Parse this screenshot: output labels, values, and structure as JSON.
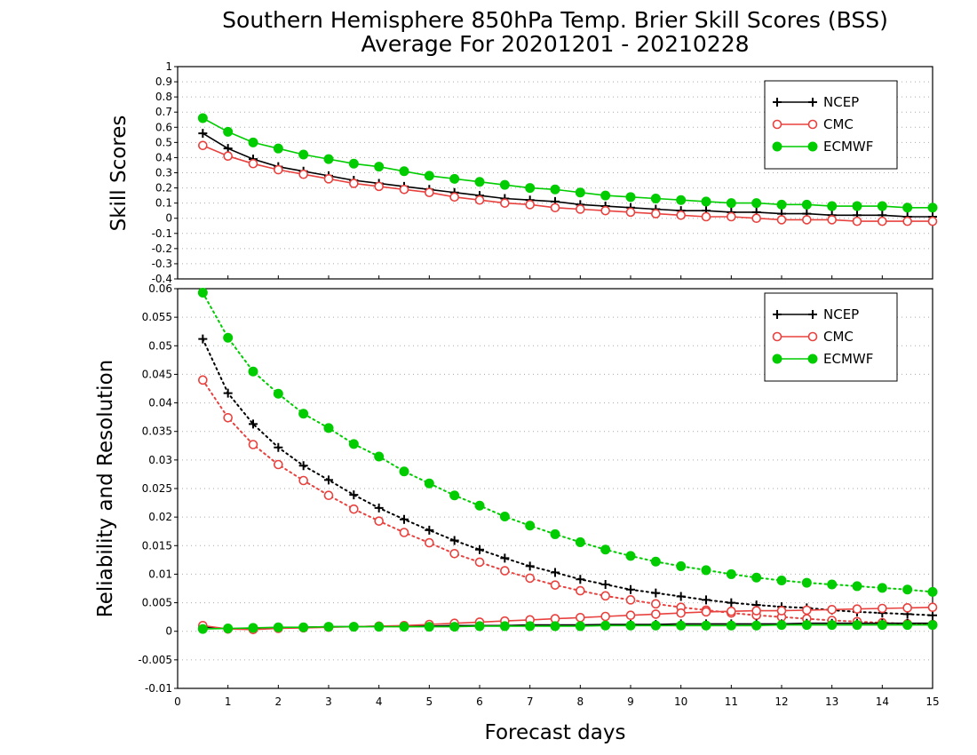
{
  "title_line1": "Southern Hemisphere 850hPa Temp. Brier Skill Scores (BSS)",
  "title_line2": "Average For 20201201 - 20210228",
  "xlabel": "Forecast days",
  "colors": {
    "NCEP": "#000000",
    "CMC": "#e8423f",
    "ECMWF": "#00cc00",
    "grid": "#aaaaaa"
  },
  "chart_data": [
    {
      "type": "line",
      "ylabel": "Skill Scores",
      "xlim": [
        0,
        15
      ],
      "ylim": [
        -0.4,
        1
      ],
      "x_ticks": [
        0,
        1,
        2,
        3,
        4,
        5,
        6,
        7,
        8,
        9,
        10,
        11,
        12,
        13,
        14,
        15
      ],
      "y_ticks": [
        -0.4,
        -0.3,
        -0.2,
        -0.1,
        0,
        0.1,
        0.2,
        0.3,
        0.4,
        0.5,
        0.6,
        0.7,
        0.8,
        0.9,
        1
      ],
      "y_tick_labels": [
        "-0.4",
        "-0.3",
        "-0.2",
        "-0.1",
        "0",
        "0.1",
        "0.2",
        "0.3",
        "0.4",
        "0.5",
        "0.6",
        "0.7",
        "0.8",
        "0.9",
        "1"
      ],
      "grid": true,
      "legend_position": "top-right",
      "x": [
        0.5,
        1,
        1.5,
        2,
        2.5,
        3,
        3.5,
        4,
        4.5,
        5,
        5.5,
        6,
        6.5,
        7,
        7.5,
        8,
        8.5,
        9,
        9.5,
        10,
        10.5,
        11,
        11.5,
        12,
        12.5,
        13,
        13.5,
        14,
        14.5,
        15
      ],
      "series": [
        {
          "name": "NCEP",
          "marker": "plus",
          "line": "solid",
          "values": [
            0.56,
            0.46,
            0.39,
            0.34,
            0.31,
            0.28,
            0.25,
            0.23,
            0.21,
            0.19,
            0.17,
            0.15,
            0.13,
            0.12,
            0.11,
            0.09,
            0.08,
            0.07,
            0.06,
            0.05,
            0.05,
            0.04,
            0.04,
            0.03,
            0.03,
            0.02,
            0.02,
            0.02,
            0.01,
            0.01
          ]
        },
        {
          "name": "CMC",
          "marker": "open-circle",
          "line": "solid",
          "values": [
            0.48,
            0.41,
            0.36,
            0.32,
            0.29,
            0.26,
            0.23,
            0.21,
            0.19,
            0.17,
            0.14,
            0.12,
            0.1,
            0.09,
            0.07,
            0.06,
            0.05,
            0.04,
            0.03,
            0.02,
            0.01,
            0.01,
            0.0,
            -0.01,
            -0.01,
            -0.01,
            -0.02,
            -0.02,
            -0.02,
            -0.02
          ]
        },
        {
          "name": "ECMWF",
          "marker": "filled-circle",
          "line": "solid",
          "values": [
            0.66,
            0.57,
            0.5,
            0.46,
            0.42,
            0.39,
            0.36,
            0.34,
            0.31,
            0.28,
            0.26,
            0.24,
            0.22,
            0.2,
            0.19,
            0.17,
            0.15,
            0.14,
            0.13,
            0.12,
            0.11,
            0.1,
            0.1,
            0.09,
            0.09,
            0.08,
            0.08,
            0.08,
            0.07,
            0.07
          ]
        }
      ]
    },
    {
      "type": "line",
      "ylabel": "Reliability and Resolution",
      "xlim": [
        0,
        15
      ],
      "ylim": [
        -0.01,
        0.06
      ],
      "x_ticks": [
        0,
        1,
        2,
        3,
        4,
        5,
        6,
        7,
        8,
        9,
        10,
        11,
        12,
        13,
        14,
        15
      ],
      "y_ticks": [
        -0.01,
        -0.005,
        0,
        0.005,
        0.01,
        0.015,
        0.02,
        0.025,
        0.03,
        0.035,
        0.04,
        0.045,
        0.05,
        0.055,
        0.06
      ],
      "y_tick_labels": [
        "-0.01",
        "-0.005",
        "0",
        "0.005",
        "0.01",
        "0.015",
        "0.02",
        "0.025",
        "0.03",
        "0.035",
        "0.04",
        "0.045",
        "0.05",
        "0.055",
        "0.06"
      ],
      "grid": true,
      "legend_position": "top-right",
      "x": [
        0.5,
        1,
        1.5,
        2,
        2.5,
        3,
        3.5,
        4,
        4.5,
        5,
        5.5,
        6,
        6.5,
        7,
        7.5,
        8,
        8.5,
        9,
        9.5,
        10,
        10.5,
        11,
        11.5,
        12,
        12.5,
        13,
        13.5,
        14,
        14.5,
        15
      ],
      "series": [
        {
          "name": "NCEP",
          "marker": "plus",
          "line": "dotted",
          "values": [
            0.0512,
            0.0417,
            0.0363,
            0.0322,
            0.029,
            0.0265,
            0.0239,
            0.0216,
            0.0196,
            0.0177,
            0.0159,
            0.0143,
            0.0128,
            0.0114,
            0.0103,
            0.0091,
            0.0082,
            0.0073,
            0.0067,
            0.0061,
            0.0055,
            0.005,
            0.0046,
            0.0043,
            0.0041,
            0.0037,
            0.0034,
            0.0032,
            0.003,
            0.0028
          ]
        },
        {
          "name": "CMC",
          "marker": "open-circle",
          "line": "dotted",
          "values": [
            0.044,
            0.0374,
            0.0327,
            0.0292,
            0.0264,
            0.0238,
            0.0214,
            0.0193,
            0.0173,
            0.0155,
            0.0136,
            0.0121,
            0.0106,
            0.0093,
            0.0081,
            0.0071,
            0.0062,
            0.0055,
            0.0048,
            0.0042,
            0.0037,
            0.0032,
            0.0028,
            0.0025,
            0.0022,
            0.0019,
            0.0017,
            0.0015,
            0.0013,
            0.0012
          ]
        },
        {
          "name": "ECMWF",
          "marker": "filled-circle",
          "line": "dotted",
          "values": [
            0.0593,
            0.0514,
            0.0455,
            0.0416,
            0.0381,
            0.0356,
            0.0328,
            0.0306,
            0.028,
            0.0259,
            0.0238,
            0.022,
            0.0201,
            0.0185,
            0.017,
            0.0156,
            0.0143,
            0.0132,
            0.0122,
            0.0114,
            0.0107,
            0.01,
            0.0094,
            0.0089,
            0.0085,
            0.0082,
            0.0079,
            0.0076,
            0.0073,
            0.0069
          ]
        },
        {
          "name": "NCEP",
          "marker": "plus",
          "line": "solid",
          "values": [
            0.0008,
            0.0004,
            0.0005,
            0.0006,
            0.0007,
            0.0008,
            0.0008,
            0.0009,
            0.0009,
            0.0009,
            0.001,
            0.001,
            0.001,
            0.0011,
            0.0011,
            0.0011,
            0.0012,
            0.0012,
            0.0012,
            0.0013,
            0.0013,
            0.0013,
            0.0013,
            0.0013,
            0.0014,
            0.0014,
            0.0014,
            0.0014,
            0.0014,
            0.0014
          ]
        },
        {
          "name": "CMC",
          "marker": "open-circle",
          "line": "solid",
          "values": [
            0.001,
            0.0004,
            0.0003,
            0.0005,
            0.0006,
            0.0007,
            0.0008,
            0.0009,
            0.001,
            0.0012,
            0.0014,
            0.0016,
            0.0018,
            0.002,
            0.0022,
            0.0024,
            0.0026,
            0.0028,
            0.003,
            0.0032,
            0.0034,
            0.0035,
            0.0036,
            0.0036,
            0.0037,
            0.0038,
            0.0039,
            0.004,
            0.0041,
            0.0042
          ]
        },
        {
          "name": "ECMWF",
          "marker": "filled-circle",
          "line": "solid",
          "values": [
            0.0004,
            0.0005,
            0.0006,
            0.0007,
            0.0007,
            0.0008,
            0.0008,
            0.0008,
            0.0008,
            0.0008,
            0.0008,
            0.0009,
            0.0009,
            0.0009,
            0.0009,
            0.0009,
            0.001,
            0.001,
            0.001,
            0.001,
            0.001,
            0.001,
            0.001,
            0.0011,
            0.0011,
            0.0011,
            0.0011,
            0.0011,
            0.0011,
            0.0011
          ]
        }
      ],
      "legend": [
        "NCEP",
        "CMC",
        "ECMWF"
      ]
    }
  ]
}
